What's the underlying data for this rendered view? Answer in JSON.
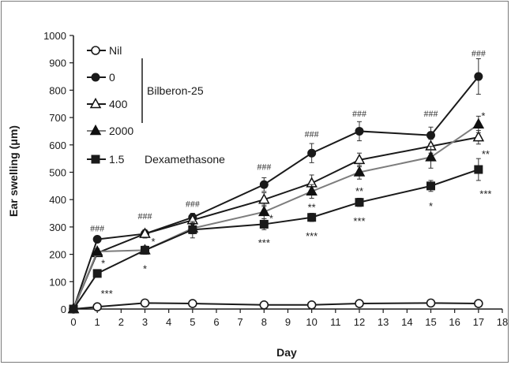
{
  "chart_data": {
    "type": "line",
    "xlabel": "Day",
    "ylabel": "Ear swelling (μm)",
    "xlim": [
      0,
      18
    ],
    "ylim": [
      0,
      1000
    ],
    "x_ticks": [
      0,
      1,
      2,
      3,
      4,
      5,
      6,
      7,
      8,
      9,
      10,
      11,
      12,
      13,
      14,
      15,
      16,
      17,
      18
    ],
    "y_ticks": [
      0,
      100,
      200,
      300,
      400,
      500,
      600,
      700,
      800,
      900,
      1000
    ],
    "grid": false,
    "legend_position": "top-left",
    "group_labels": [
      "Bilberon-25",
      "Dexamethasone"
    ],
    "series": [
      {
        "name": "Nil",
        "marker": "open-circle",
        "color": "#1a1a1a",
        "x": [
          0,
          1,
          3,
          5,
          8,
          10,
          12,
          15,
          17
        ],
        "y": [
          0,
          8,
          22,
          20,
          15,
          15,
          20,
          22,
          20
        ],
        "err": [
          0,
          0,
          0,
          0,
          0,
          0,
          0,
          0,
          0
        ]
      },
      {
        "name": "0",
        "marker": "filled-circle",
        "color": "#1a1a1a",
        "x": [
          0,
          1,
          3,
          5,
          8,
          10,
          12,
          15,
          17
        ],
        "y": [
          0,
          255,
          275,
          335,
          455,
          570,
          650,
          635,
          850
        ],
        "err": [
          0,
          10,
          15,
          15,
          25,
          35,
          35,
          30,
          65
        ]
      },
      {
        "name": "400",
        "marker": "open-triangle",
        "color": "#1a1a1a",
        "x": [
          0,
          1,
          3,
          5,
          8,
          10,
          12,
          15,
          17
        ],
        "y": [
          0,
          205,
          275,
          325,
          400,
          460,
          545,
          595,
          628
        ],
        "err": [
          0,
          10,
          15,
          15,
          25,
          30,
          25,
          25,
          25
        ]
      },
      {
        "name": "2000",
        "marker": "filled-triangle",
        "color": "#7d7d7d",
        "x": [
          0,
          1,
          3,
          5,
          8,
          10,
          12,
          15,
          17
        ],
        "y": [
          0,
          210,
          215,
          295,
          355,
          430,
          500,
          555,
          675
        ],
        "err": [
          0,
          10,
          10,
          20,
          25,
          25,
          25,
          40,
          30
        ]
      },
      {
        "name": "1.5",
        "marker": "filled-square",
        "color": "#1a1a1a",
        "x": [
          0,
          1,
          3,
          5,
          8,
          10,
          12,
          15,
          17
        ],
        "y": [
          0,
          130,
          215,
          290,
          310,
          335,
          390,
          450,
          510
        ],
        "err": [
          0,
          10,
          15,
          30,
          20,
          15,
          15,
          20,
          40
        ]
      }
    ],
    "annotations": [
      {
        "text": "###",
        "x": 1,
        "y": 295
      },
      {
        "text": "###",
        "x": 3,
        "y": 340
      },
      {
        "text": "###",
        "x": 5,
        "y": 385
      },
      {
        "text": "###",
        "x": 8,
        "y": 520
      },
      {
        "text": "###",
        "x": 10,
        "y": 640
      },
      {
        "text": "###",
        "x": 12,
        "y": 715
      },
      {
        "text": "###",
        "x": 15,
        "y": 715
      },
      {
        "text": "###",
        "x": 17,
        "y": 935
      },
      {
        "text": "*",
        "x": 1.25,
        "y": 165
      },
      {
        "text": "***",
        "x": 1.4,
        "y": 55
      },
      {
        "text": "*",
        "x": 3.35,
        "y": 245
      },
      {
        "text": "*",
        "x": 3,
        "y": 145
      },
      {
        "text": "*",
        "x": 8.3,
        "y": 330
      },
      {
        "text": "***",
        "x": 8,
        "y": 240
      },
      {
        "text": "**",
        "x": 10,
        "y": 370
      },
      {
        "text": "***",
        "x": 10,
        "y": 265
      },
      {
        "text": "**",
        "x": 12,
        "y": 430
      },
      {
        "text": "***",
        "x": 12,
        "y": 320
      },
      {
        "text": "*",
        "x": 15,
        "y": 375
      },
      {
        "text": "*",
        "x": 17.2,
        "y": 705
      },
      {
        "text": "**",
        "x": 17.3,
        "y": 565
      },
      {
        "text": "***",
        "x": 17.3,
        "y": 420
      }
    ]
  }
}
